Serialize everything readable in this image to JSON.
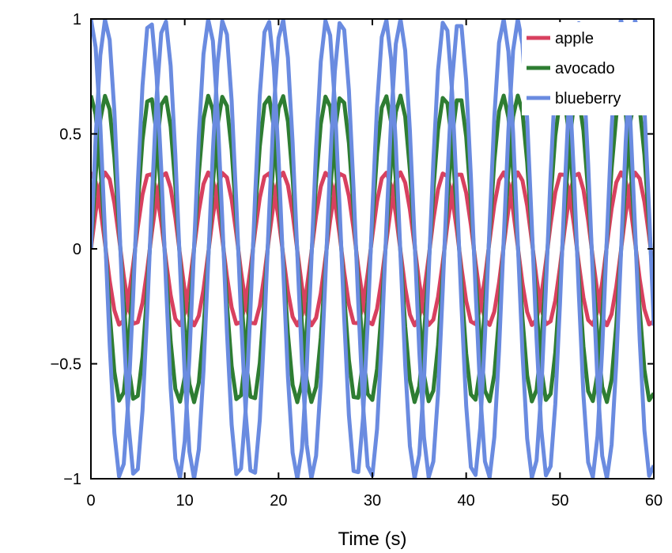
{
  "chart_data": {
    "type": "line",
    "title": "",
    "xlabel": "Time (s)",
    "ylabel": "",
    "xlim": [
      0,
      60
    ],
    "ylim": [
      -1,
      1
    ],
    "xticks": [
      0,
      10,
      20,
      30,
      40,
      50,
      60
    ],
    "xtick_labels": [
      "0",
      "10",
      "20",
      "30",
      "40",
      "50",
      "60"
    ],
    "yticks": [
      1,
      0.5,
      0,
      -0.5,
      -1
    ],
    "ytick_labels": [
      "1",
      "0.5",
      "0",
      "−0.5",
      "−1"
    ],
    "grid": false,
    "legend_position": "top-right",
    "x_step": 0.5,
    "series": [
      {
        "name": "apple",
        "color": "#d8405f",
        "amplitude": 0.333,
        "period_s": 6.28,
        "components": [
          "sin",
          "cos"
        ]
      },
      {
        "name": "avocado",
        "color": "#2e7d32",
        "amplitude": 0.667,
        "period_s": 6.28,
        "components": [
          "sin",
          "cos"
        ]
      },
      {
        "name": "blueberry",
        "color": "#6a8be0",
        "amplitude": 1.0,
        "period_s": 6.28,
        "components": [
          "sin",
          "cos"
        ]
      }
    ]
  }
}
